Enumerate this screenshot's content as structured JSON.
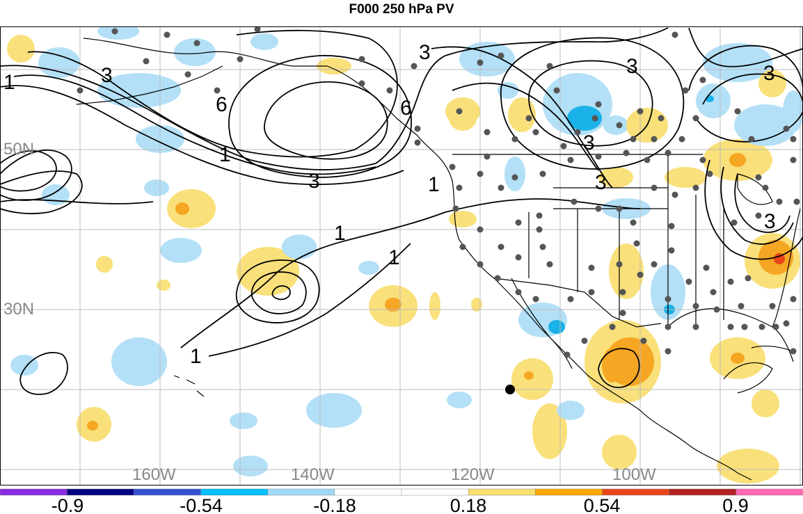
{
  "title": "F000 250 hPa PV",
  "lat_labels": [
    "50N",
    "30N"
  ],
  "lon_labels": [
    "160W",
    "140W",
    "120W",
    "100W"
  ],
  "contour_labels": [
    "1",
    "1",
    "1",
    "1",
    "1",
    "1",
    "3",
    "3",
    "3",
    "3",
    "3",
    "3",
    "3",
    "6",
    "6",
    "3"
  ],
  "colorbar": {
    "ticks": [
      "-0.9",
      "-0.54",
      "-0.18",
      "0.18",
      "0.54",
      "0.9"
    ],
    "colors": [
      "#8a2be2",
      "#000080",
      "#3050d0",
      "#00bfff",
      "#a0d8f8",
      "#ffffff",
      "#ffffff",
      "#f8e070",
      "#ffa500",
      "#e8451a",
      "#b22222",
      "#ff69b4"
    ]
  },
  "colors": {
    "pos_light": "#f9e07a",
    "pos_mid": "#f5a623",
    "pos_dark": "#e8451a",
    "neg_light": "#b3e0f7",
    "neg_mid": "#1ab2e8",
    "grid": "#bbbbbb",
    "land": "#000000",
    "station": "#555555"
  }
}
